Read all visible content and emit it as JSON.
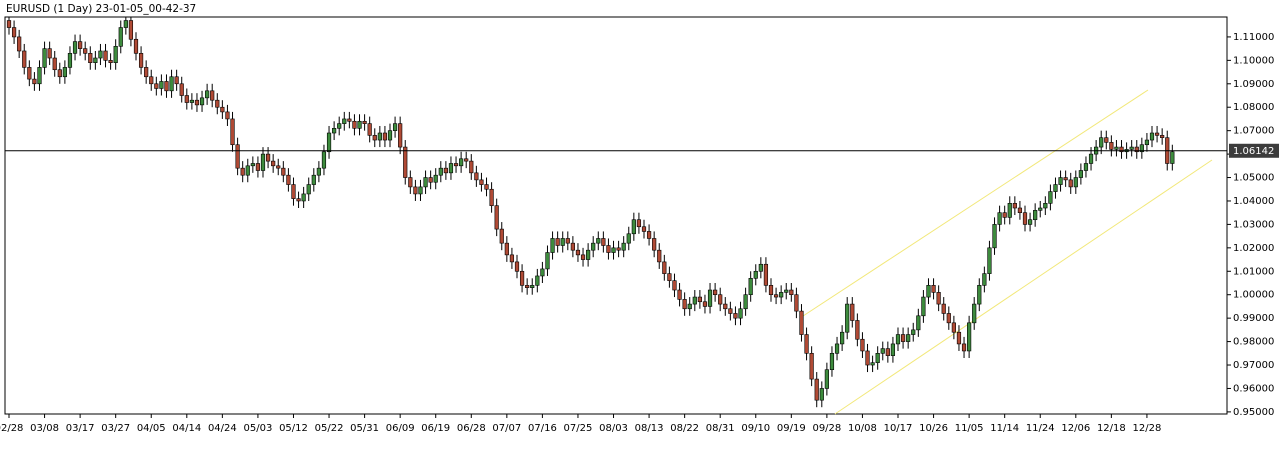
{
  "chart_data": {
    "type": "candlestick",
    "title": "EURUSD (1 Day) 23-01-05_00-42-37",
    "categories": [
      "02/28",
      null,
      null,
      null,
      null,
      null,
      null,
      "03/08",
      null,
      null,
      null,
      null,
      null,
      null,
      "03/17",
      null,
      null,
      null,
      null,
      null,
      null,
      "03/27",
      null,
      null,
      null,
      null,
      null,
      null,
      "04/05",
      null,
      null,
      null,
      null,
      null,
      null,
      "04/14",
      null,
      null,
      null,
      null,
      null,
      null,
      "04/24",
      null,
      null,
      null,
      null,
      null,
      null,
      "05/03",
      null,
      null,
      null,
      null,
      null,
      null,
      "05/12",
      null,
      null,
      null,
      null,
      null,
      null,
      "05/22",
      null,
      null,
      null,
      null,
      null,
      null,
      "05/31",
      null,
      null,
      null,
      null,
      null,
      null,
      "06/09",
      null,
      null,
      null,
      null,
      null,
      null,
      "06/19",
      null,
      null,
      null,
      null,
      null,
      null,
      "06/28",
      null,
      null,
      null,
      null,
      null,
      null,
      "07/07",
      null,
      null,
      null,
      null,
      null,
      null,
      "07/16",
      null,
      null,
      null,
      null,
      null,
      null,
      "07/25",
      null,
      null,
      null,
      null,
      null,
      null,
      "08/03",
      null,
      null,
      null,
      null,
      null,
      null,
      "08/13",
      null,
      null,
      null,
      null,
      null,
      null,
      "08/22",
      null,
      null,
      null,
      null,
      null,
      null,
      "08/31",
      null,
      null,
      null,
      null,
      null,
      null,
      "09/10",
      null,
      null,
      null,
      null,
      null,
      null,
      "09/19",
      null,
      null,
      null,
      null,
      null,
      null,
      "09/28",
      null,
      null,
      null,
      null,
      null,
      null,
      "10/08",
      null,
      null,
      null,
      null,
      null,
      null,
      "10/17",
      null,
      null,
      null,
      null,
      null,
      null,
      "10/26",
      null,
      null,
      null,
      null,
      null,
      null,
      "11/05",
      null,
      null,
      null,
      null,
      null,
      null,
      "11/14",
      null,
      null,
      null,
      null,
      null,
      null,
      "11/24",
      null,
      null,
      null,
      null,
      null,
      null,
      "12/06",
      null,
      null,
      null,
      null,
      null,
      null,
      "12/18",
      null,
      null,
      null,
      null,
      null,
      null,
      "12/28",
      null,
      null,
      null,
      null,
      null
    ],
    "open": [
      1.117,
      1.114,
      1.11,
      1.104,
      1.097,
      1.092,
      1.09,
      1.097,
      1.105,
      1.101,
      1.096,
      1.093,
      1.097,
      1.103,
      1.108,
      1.105,
      1.103,
      1.099,
      1.101,
      1.104,
      1.1,
      1.099,
      1.106,
      1.114,
      1.117,
      1.109,
      1.103,
      1.097,
      1.093,
      1.09,
      1.088,
      1.091,
      1.087,
      1.093,
      1.09,
      1.085,
      1.082,
      1.083,
      1.081,
      1.084,
      1.087,
      1.083,
      1.08,
      1.078,
      1.075,
      1.064,
      1.054,
      1.051,
      1.055,
      1.056,
      1.053,
      1.06,
      1.057,
      1.055,
      1.054,
      1.051,
      1.047,
      1.041,
      1.04,
      1.043,
      1.047,
      1.051,
      1.054,
      1.061,
      1.069,
      1.071,
      1.073,
      1.075,
      1.074,
      1.071,
      1.074,
      1.073,
      1.068,
      1.066,
      1.069,
      1.066,
      1.07,
      1.073,
      1.063,
      1.05,
      1.046,
      1.043,
      1.046,
      1.05,
      1.048,
      1.051,
      1.054,
      1.052,
      1.056,
      1.055,
      1.058,
      1.057,
      1.052,
      1.049,
      1.047,
      1.045,
      1.038,
      1.028,
      1.022,
      1.017,
      1.014,
      1.01,
      1.004,
      1.003,
      1.004,
      1.008,
      1.011,
      1.018,
      1.024,
      1.021,
      1.024,
      1.022,
      1.019,
      1.017,
      1.015,
      1.019,
      1.022,
      1.024,
      1.021,
      1.018,
      1.02,
      1.019,
      1.022,
      1.026,
      1.032,
      1.029,
      1.027,
      1.024,
      1.019,
      1.014,
      1.009,
      1.006,
      1.002,
      0.998,
      0.994,
      0.996,
      0.999,
      0.997,
      0.995,
      1.002,
      1.0,
      0.996,
      0.994,
      0.992,
      0.99,
      0.994,
      1.0,
      1.007,
      1.01,
      1.013,
      1.004,
      1.0,
      0.999,
      1.001,
      1.002,
      1.0,
      0.993,
      0.983,
      0.975,
      0.964,
      0.955,
      0.96,
      0.968,
      0.975,
      0.979,
      0.984,
      0.996,
      0.989,
      0.981,
      0.976,
      0.97,
      0.971,
      0.975,
      0.977,
      0.974,
      0.979,
      0.983,
      0.98,
      0.983,
      0.985,
      0.991,
      0.999,
      1.004,
      1.001,
      0.996,
      0.992,
      0.988,
      0.984,
      0.979,
      0.976,
      0.988,
      0.996,
      1.004,
      1.009,
      1.02,
      1.03,
      1.035,
      1.033,
      1.039,
      1.037,
      1.035,
      1.03,
      1.032,
      1.036,
      1.037,
      1.039,
      1.044,
      1.047,
      1.05,
      1.049,
      1.046,
      1.05,
      1.053,
      1.056,
      1.06,
      1.063,
      1.067,
      1.065,
      1.062,
      1.063,
      1.061,
      1.062,
      1.063,
      1.061,
      1.064,
      1.066,
      1.069,
      1.068,
      1.067,
      1.056
    ],
    "high": [
      1.12,
      1.117,
      1.113,
      1.107,
      1.1,
      1.095,
      1.1,
      1.108,
      1.108,
      1.104,
      1.099,
      1.1,
      1.106,
      1.111,
      1.111,
      1.108,
      1.106,
      1.104,
      1.107,
      1.107,
      1.103,
      1.109,
      1.117,
      1.12,
      1.12,
      1.112,
      1.106,
      1.1,
      1.096,
      1.093,
      1.094,
      1.094,
      1.096,
      1.096,
      1.093,
      1.088,
      1.086,
      1.086,
      1.087,
      1.09,
      1.09,
      1.086,
      1.083,
      1.081,
      1.078,
      1.067,
      1.057,
      1.058,
      1.059,
      1.059,
      1.063,
      1.063,
      1.06,
      1.058,
      1.057,
      1.054,
      1.05,
      1.044,
      1.046,
      1.05,
      1.054,
      1.057,
      1.064,
      1.072,
      1.074,
      1.076,
      1.078,
      1.078,
      1.077,
      1.077,
      1.077,
      1.076,
      1.071,
      1.072,
      1.072,
      1.073,
      1.076,
      1.076,
      1.066,
      1.053,
      1.049,
      1.049,
      1.053,
      1.053,
      1.054,
      1.057,
      1.057,
      1.059,
      1.059,
      1.061,
      1.061,
      1.06,
      1.055,
      1.052,
      1.05,
      1.048,
      1.041,
      1.031,
      1.025,
      1.02,
      1.017,
      1.013,
      1.007,
      1.007,
      1.011,
      1.014,
      1.021,
      1.027,
      1.027,
      1.027,
      1.027,
      1.025,
      1.022,
      1.02,
      1.022,
      1.025,
      1.027,
      1.027,
      1.024,
      1.023,
      1.023,
      1.025,
      1.029,
      1.035,
      1.035,
      1.032,
      1.03,
      1.027,
      1.022,
      1.017,
      1.012,
      1.009,
      1.005,
      1.001,
      0.999,
      1.002,
      1.002,
      1.0,
      1.005,
      1.005,
      1.003,
      0.999,
      0.997,
      0.995,
      0.997,
      1.003,
      1.01,
      1.013,
      1.016,
      1.016,
      1.007,
      1.003,
      1.004,
      1.005,
      1.005,
      1.003,
      0.996,
      0.986,
      0.978,
      0.967,
      0.963,
      0.971,
      0.978,
      0.982,
      0.987,
      0.999,
      0.999,
      0.992,
      0.984,
      0.979,
      0.974,
      0.978,
      0.98,
      0.98,
      0.982,
      0.986,
      0.986,
      0.986,
      0.988,
      0.994,
      1.002,
      1.007,
      1.007,
      1.004,
      0.999,
      0.995,
      0.991,
      0.987,
      0.982,
      0.991,
      0.999,
      1.007,
      1.012,
      1.023,
      1.033,
      1.038,
      1.038,
      1.042,
      1.042,
      1.04,
      1.038,
      1.035,
      1.039,
      1.04,
      1.042,
      1.047,
      1.05,
      1.053,
      1.053,
      1.052,
      1.053,
      1.056,
      1.059,
      1.063,
      1.066,
      1.07,
      1.07,
      1.068,
      1.066,
      1.066,
      1.065,
      1.066,
      1.066,
      1.067,
      1.069,
      1.072,
      1.072,
      1.071,
      1.07,
      1.064
    ],
    "low": [
      1.111,
      1.107,
      1.101,
      1.094,
      1.089,
      1.087,
      1.087,
      1.094,
      1.098,
      1.093,
      1.09,
      1.09,
      1.094,
      1.1,
      1.102,
      1.1,
      1.096,
      1.096,
      1.098,
      1.097,
      1.096,
      1.096,
      1.103,
      1.111,
      1.106,
      1.1,
      1.094,
      1.09,
      1.087,
      1.085,
      1.085,
      1.084,
      1.084,
      1.087,
      1.082,
      1.079,
      1.079,
      1.078,
      1.078,
      1.081,
      1.08,
      1.077,
      1.075,
      1.072,
      1.061,
      1.051,
      1.048,
      1.048,
      1.052,
      1.05,
      1.05,
      1.054,
      1.052,
      1.051,
      1.048,
      1.044,
      1.038,
      1.037,
      1.037,
      1.04,
      1.044,
      1.048,
      1.051,
      1.058,
      1.066,
      1.068,
      1.07,
      1.071,
      1.068,
      1.068,
      1.07,
      1.065,
      1.063,
      1.063,
      1.063,
      1.063,
      1.067,
      1.06,
      1.047,
      1.043,
      1.04,
      1.04,
      1.043,
      1.045,
      1.045,
      1.048,
      1.049,
      1.049,
      1.052,
      1.052,
      1.054,
      1.049,
      1.046,
      1.044,
      1.042,
      1.035,
      1.025,
      1.019,
      1.014,
      1.011,
      1.007,
      1.001,
      1.0,
      1.0,
      1.001,
      1.005,
      1.008,
      1.015,
      1.018,
      1.018,
      1.019,
      1.016,
      1.014,
      1.012,
      1.012,
      1.016,
      1.019,
      1.018,
      1.015,
      1.015,
      1.016,
      1.016,
      1.019,
      1.023,
      1.026,
      1.024,
      1.021,
      1.016,
      1.011,
      1.006,
      1.003,
      0.999,
      0.995,
      0.991,
      0.991,
      0.993,
      0.994,
      0.992,
      0.992,
      0.997,
      0.993,
      0.991,
      0.989,
      0.987,
      0.987,
      0.991,
      0.997,
      1.004,
      1.007,
      1.001,
      0.997,
      0.996,
      0.996,
      0.998,
      0.997,
      0.99,
      0.98,
      0.972,
      0.961,
      0.952,
      0.952,
      0.957,
      0.965,
      0.972,
      0.976,
      0.981,
      0.986,
      0.978,
      0.973,
      0.967,
      0.967,
      0.968,
      0.972,
      0.971,
      0.971,
      0.976,
      0.977,
      0.977,
      0.98,
      0.982,
      0.988,
      0.996,
      0.998,
      0.993,
      0.989,
      0.985,
      0.981,
      0.976,
      0.973,
      0.973,
      0.985,
      0.993,
      1.001,
      1.006,
      1.017,
      1.027,
      1.03,
      1.03,
      1.034,
      1.032,
      1.027,
      1.027,
      1.029,
      1.033,
      1.034,
      1.036,
      1.041,
      1.044,
      1.046,
      1.043,
      1.043,
      1.047,
      1.05,
      1.053,
      1.057,
      1.06,
      1.062,
      1.059,
      1.059,
      1.058,
      1.058,
      1.059,
      1.058,
      1.058,
      1.061,
      1.063,
      1.065,
      1.064,
      1.053,
      1.053
    ],
    "close": [
      1.114,
      1.11,
      1.104,
      1.097,
      1.092,
      1.09,
      1.097,
      1.105,
      1.101,
      1.096,
      1.093,
      1.097,
      1.103,
      1.108,
      1.105,
      1.103,
      1.099,
      1.101,
      1.104,
      1.1,
      1.099,
      1.106,
      1.114,
      1.117,
      1.109,
      1.103,
      1.097,
      1.093,
      1.09,
      1.088,
      1.091,
      1.087,
      1.093,
      1.09,
      1.085,
      1.082,
      1.083,
      1.081,
      1.084,
      1.087,
      1.083,
      1.08,
      1.078,
      1.075,
      1.064,
      1.054,
      1.051,
      1.055,
      1.056,
      1.053,
      1.06,
      1.057,
      1.055,
      1.054,
      1.051,
      1.047,
      1.041,
      1.04,
      1.043,
      1.047,
      1.051,
      1.054,
      1.061,
      1.069,
      1.071,
      1.073,
      1.075,
      1.074,
      1.071,
      1.074,
      1.073,
      1.068,
      1.066,
      1.069,
      1.066,
      1.07,
      1.073,
      1.063,
      1.05,
      1.046,
      1.043,
      1.046,
      1.05,
      1.048,
      1.051,
      1.054,
      1.052,
      1.056,
      1.055,
      1.058,
      1.057,
      1.052,
      1.049,
      1.047,
      1.045,
      1.038,
      1.028,
      1.022,
      1.017,
      1.014,
      1.01,
      1.004,
      1.003,
      1.004,
      1.008,
      1.011,
      1.018,
      1.024,
      1.021,
      1.024,
      1.022,
      1.019,
      1.017,
      1.015,
      1.019,
      1.022,
      1.024,
      1.021,
      1.018,
      1.02,
      1.019,
      1.022,
      1.026,
      1.032,
      1.029,
      1.027,
      1.024,
      1.019,
      1.014,
      1.009,
      1.006,
      1.002,
      0.998,
      0.994,
      0.996,
      0.999,
      0.997,
      0.995,
      1.002,
      1.0,
      0.996,
      0.994,
      0.992,
      0.99,
      0.994,
      1.0,
      1.007,
      1.01,
      1.013,
      1.004,
      1.0,
      0.999,
      1.001,
      1.002,
      1.0,
      0.993,
      0.983,
      0.975,
      0.964,
      0.955,
      0.96,
      0.968,
      0.975,
      0.979,
      0.984,
      0.996,
      0.989,
      0.981,
      0.976,
      0.97,
      0.971,
      0.975,
      0.977,
      0.974,
      0.979,
      0.983,
      0.98,
      0.983,
      0.985,
      0.991,
      0.999,
      1.004,
      1.001,
      0.996,
      0.992,
      0.988,
      0.984,
      0.979,
      0.976,
      0.988,
      0.996,
      1.004,
      1.009,
      1.02,
      1.03,
      1.035,
      1.033,
      1.039,
      1.037,
      1.035,
      1.03,
      1.032,
      1.036,
      1.037,
      1.039,
      1.044,
      1.047,
      1.05,
      1.049,
      1.046,
      1.05,
      1.053,
      1.056,
      1.06,
      1.063,
      1.067,
      1.065,
      1.062,
      1.063,
      1.061,
      1.062,
      1.063,
      1.061,
      1.064,
      1.066,
      1.069,
      1.068,
      1.067,
      1.056,
      1.061
    ],
    "up_color": "#3d8b3d",
    "down_color": "#b04a35",
    "ylim": [
      0.9491,
      1.1185
    ],
    "yticks": [
      {
        "value": 0.95,
        "label": "0.95000"
      },
      {
        "value": 0.96,
        "label": "0.96000"
      },
      {
        "value": 0.97,
        "label": "0.97000"
      },
      {
        "value": 0.98,
        "label": "0.98000"
      },
      {
        "value": 0.99,
        "label": "0.99000"
      },
      {
        "value": 1.0,
        "label": "1.00000"
      },
      {
        "value": 1.01,
        "label": "1.01000"
      },
      {
        "value": 1.02,
        "label": "1.02000"
      },
      {
        "value": 1.03,
        "label": "1.03000"
      },
      {
        "value": 1.04,
        "label": "1.04000"
      },
      {
        "value": 1.05,
        "label": "1.05000"
      },
      {
        "value": 1.06,
        "label": "1.06000"
      },
      {
        "value": 1.07,
        "label": "1.07000"
      },
      {
        "value": 1.08,
        "label": "1.08000"
      },
      {
        "value": 1.09,
        "label": "1.09000"
      },
      {
        "value": 1.1,
        "label": "1.10000"
      },
      {
        "value": 1.11,
        "label": "1.11000"
      }
    ],
    "current_price": {
      "value": 1.06142,
      "label": "1.06142"
    }
  }
}
